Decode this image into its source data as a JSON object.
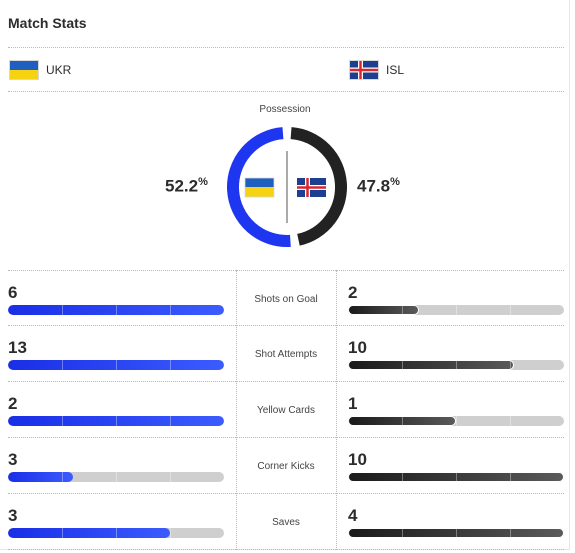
{
  "title": "Match Stats",
  "home": {
    "code": "UKR",
    "flag": "ukraine-flag",
    "possession": "52.2",
    "color": "#1e36ef"
  },
  "away": {
    "code": "ISL",
    "flag": "iceland-flag",
    "possession": "47.8",
    "color": "#222222"
  },
  "possession_label": "Possession",
  "percent_sign": "%",
  "stats": [
    {
      "label": "Shots on Goal",
      "home": "6",
      "away": "2",
      "home_fill": 1.0,
      "away_fill": 0.33
    },
    {
      "label": "Shot Attempts",
      "home": "13",
      "away": "10",
      "home_fill": 1.0,
      "away_fill": 0.77
    },
    {
      "label": "Yellow Cards",
      "home": "2",
      "away": "1",
      "home_fill": 1.0,
      "away_fill": 0.5
    },
    {
      "label": "Corner Kicks",
      "home": "3",
      "away": "10",
      "home_fill": 0.3,
      "away_fill": 1.0
    },
    {
      "label": "Saves",
      "home": "3",
      "away": "4",
      "home_fill": 0.75,
      "away_fill": 1.0
    }
  ]
}
